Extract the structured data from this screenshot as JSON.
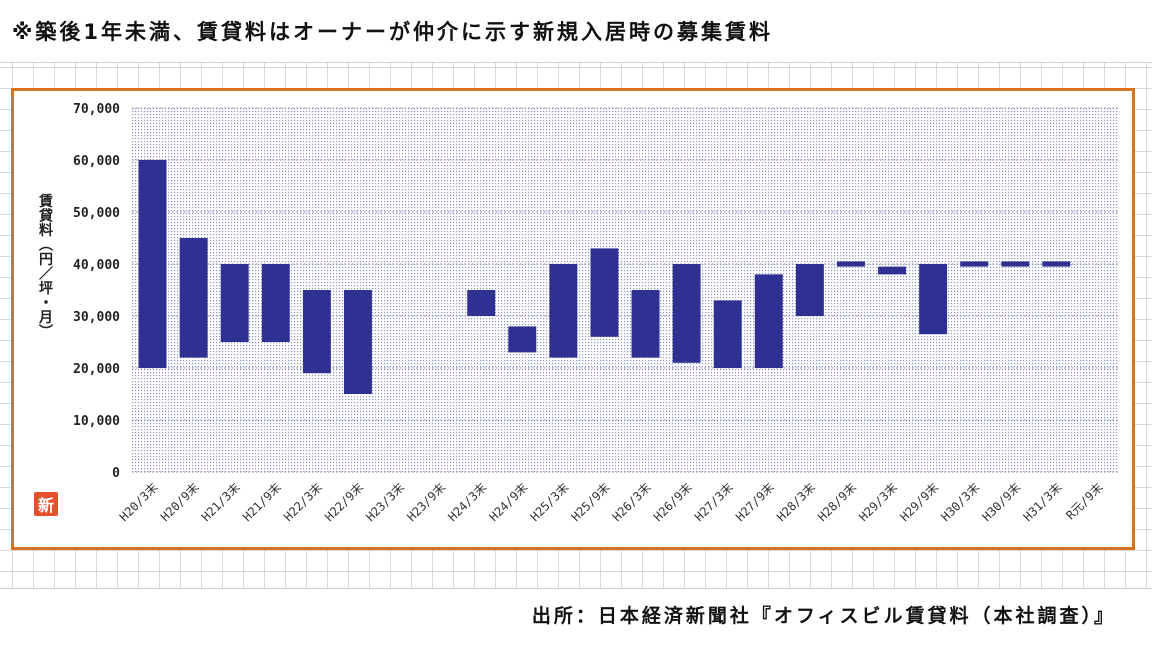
{
  "note": "※築後1年未満、賃貸料はオーナーが仲介に示す新規入居時の募集賃料",
  "source": "出所：日本経済新聞社『オフィスビル賃貸料（本社調査）』",
  "logo_char": "新",
  "colors": {
    "bar": "#2e3192",
    "frame": "#d9731f",
    "plot_dots": "#8e93c4"
  },
  "chart_data": {
    "type": "bar",
    "subtype": "floating-range",
    "ylabel": "賃貸料（円／坪・月）",
    "ylim": [
      0,
      70000
    ],
    "yticks": [
      0,
      10000,
      20000,
      30000,
      40000,
      50000,
      60000,
      70000
    ],
    "ytick_labels": [
      "0",
      "10,000",
      "20,000",
      "30,000",
      "40,000",
      "50,000",
      "60,000",
      "70,000"
    ],
    "categories": [
      "H20/3末",
      "H20/9末",
      "H21/3末",
      "H21/9末",
      "H22/3末",
      "H22/9末",
      "H23/3末",
      "H23/9末",
      "H24/3末",
      "H24/9末",
      "H25/3末",
      "H25/9末",
      "H26/3末",
      "H26/9末",
      "H27/3末",
      "H27/9末",
      "H28/3末",
      "H28/9末",
      "H29/3末",
      "H29/9末",
      "H30/3末",
      "H30/9末",
      "H31/3末",
      "R元/9末"
    ],
    "low": [
      20000,
      22000,
      25000,
      25000,
      19000,
      15000,
      null,
      null,
      30000,
      23000,
      22000,
      26000,
      22000,
      21000,
      20000,
      20000,
      30000,
      39500,
      38000,
      26500,
      39500,
      39500,
      39500,
      null
    ],
    "high": [
      60000,
      45000,
      40000,
      40000,
      35000,
      35000,
      null,
      null,
      35000,
      28000,
      40000,
      43000,
      35000,
      40000,
      33000,
      38000,
      40000,
      40500,
      39500,
      40000,
      40500,
      40500,
      40500,
      null
    ],
    "grid": true
  }
}
